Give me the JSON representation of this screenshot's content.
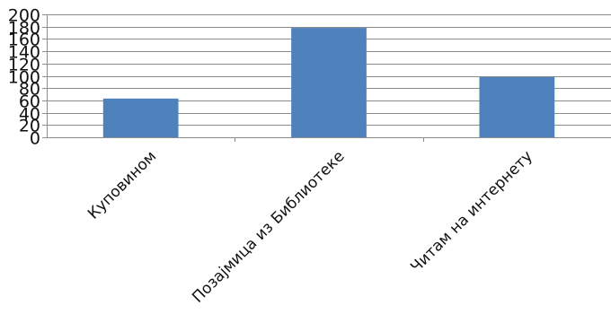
{
  "chart_data": {
    "type": "bar",
    "categories": [
      "Куповином",
      "Позајмица из Библиотеке",
      "Читам на интернету"
    ],
    "values": [
      63,
      178,
      98
    ],
    "ylim": [
      0,
      200
    ],
    "yticks": [
      0,
      20,
      40,
      60,
      80,
      100,
      120,
      140,
      160,
      180,
      200
    ],
    "grid": true,
    "legend": "none",
    "colors": {
      "bar": "#4f81bd",
      "grid": "#8c8c8c",
      "axis": "#8c8c8c"
    }
  }
}
